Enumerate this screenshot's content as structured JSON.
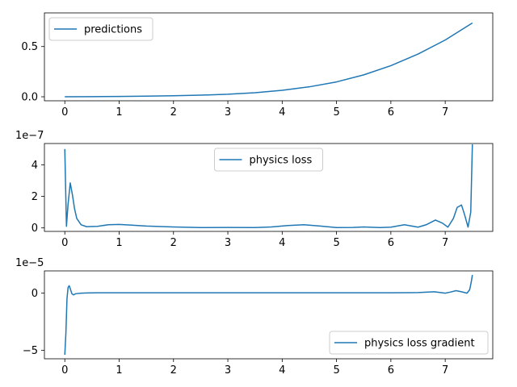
{
  "chart_data": [
    {
      "type": "line",
      "title": "",
      "xlabel": "",
      "ylabel": "",
      "xlim": [
        -0.375,
        7.875
      ],
      "ylim": [
        -0.04,
        0.835
      ],
      "x_ticks": [
        0,
        1,
        2,
        3,
        4,
        5,
        6,
        7
      ],
      "x_tick_labels": [
        "0",
        "1",
        "2",
        "3",
        "4",
        "5",
        "6",
        "7"
      ],
      "y_ticks": [
        0.0,
        0.5
      ],
      "y_tick_labels": [
        "0.0",
        "0.5"
      ],
      "offset_text": "",
      "legend": {
        "placement": "upper left"
      },
      "grid": false,
      "series": [
        {
          "name": "predictions",
          "color": "#1f77b4",
          "x": [
            0,
            0.5,
            1,
            1.5,
            2,
            2.5,
            3,
            3.5,
            4,
            4.5,
            5,
            5.5,
            6,
            6.5,
            7,
            7.5
          ],
          "y": [
            0.0,
            0.001,
            0.003,
            0.006,
            0.01,
            0.016,
            0.025,
            0.04,
            0.064,
            0.099,
            0.148,
            0.218,
            0.31,
            0.425,
            0.565,
            0.735
          ]
        }
      ]
    },
    {
      "type": "line",
      "title": "",
      "xlabel": "",
      "ylabel": "",
      "xlim": [
        -0.375,
        7.875
      ],
      "ylim": [
        -0.22,
        5.35
      ],
      "x_ticks": [
        0,
        1,
        2,
        3,
        4,
        5,
        6,
        7
      ],
      "x_tick_labels": [
        "0",
        "1",
        "2",
        "3",
        "4",
        "5",
        "6",
        "7"
      ],
      "y_ticks": [
        0,
        2,
        4
      ],
      "y_tick_labels": [
        "0",
        "2",
        "4"
      ],
      "offset_text": "1e−7",
      "legend": {
        "placement": "upper center"
      },
      "grid": false,
      "series": [
        {
          "name": "physics loss",
          "color": "#1f77b4",
          "x": [
            0,
            0.03,
            0.06,
            0.1,
            0.14,
            0.18,
            0.22,
            0.3,
            0.4,
            0.6,
            0.8,
            1.0,
            1.2,
            1.5,
            2.0,
            2.5,
            3.0,
            3.5,
            3.8,
            4.1,
            4.4,
            4.7,
            5.0,
            5.3,
            5.5,
            5.8,
            6.0,
            6.25,
            6.5,
            6.65,
            6.82,
            6.95,
            7.05,
            7.15,
            7.22,
            7.3,
            7.36,
            7.42,
            7.47,
            7.5
          ],
          "y": [
            5.0,
            0.1,
            1.5,
            2.85,
            2.1,
            1.2,
            0.6,
            0.2,
            0.08,
            0.1,
            0.2,
            0.22,
            0.18,
            0.12,
            0.06,
            0.02,
            0.03,
            0.02,
            0.06,
            0.15,
            0.2,
            0.12,
            0.02,
            0.03,
            0.06,
            0.02,
            0.05,
            0.2,
            0.05,
            0.2,
            0.5,
            0.3,
            0.05,
            0.6,
            1.3,
            1.45,
            0.8,
            0.05,
            1.0,
            5.3
          ]
        }
      ]
    },
    {
      "type": "line",
      "title": "",
      "xlabel": "",
      "ylabel": "",
      "xlim": [
        -0.375,
        7.875
      ],
      "ylim": [
        -5.75,
        1.95
      ],
      "x_ticks": [
        0,
        1,
        2,
        3,
        4,
        5,
        6,
        7
      ],
      "x_tick_labels": [
        "0",
        "1",
        "2",
        "3",
        "4",
        "5",
        "6",
        "7"
      ],
      "y_ticks": [
        -5,
        0
      ],
      "y_tick_labels": [
        "−5",
        "0"
      ],
      "offset_text": "1e−5",
      "legend": {
        "placement": "lower right"
      },
      "grid": false,
      "series": [
        {
          "name": "physics loss gradient",
          "color": "#1f77b4",
          "x": [
            0,
            0.02,
            0.04,
            0.06,
            0.08,
            0.1,
            0.13,
            0.16,
            0.2,
            0.3,
            0.4,
            0.6,
            1.0,
            2.0,
            3.0,
            4.0,
            5.0,
            6.0,
            6.5,
            6.8,
            6.9,
            7.0,
            7.1,
            7.2,
            7.3,
            7.4,
            7.45,
            7.48,
            7.5
          ],
          "y": [
            -5.4,
            -3.5,
            -0.5,
            0.5,
            0.65,
            0.4,
            -0.05,
            -0.15,
            -0.05,
            0.0,
            0.02,
            0.03,
            0.03,
            0.03,
            0.03,
            0.03,
            0.03,
            0.03,
            0.05,
            0.12,
            0.06,
            0.0,
            0.1,
            0.22,
            0.12,
            0.0,
            0.3,
            1.0,
            1.6
          ]
        }
      ]
    }
  ]
}
